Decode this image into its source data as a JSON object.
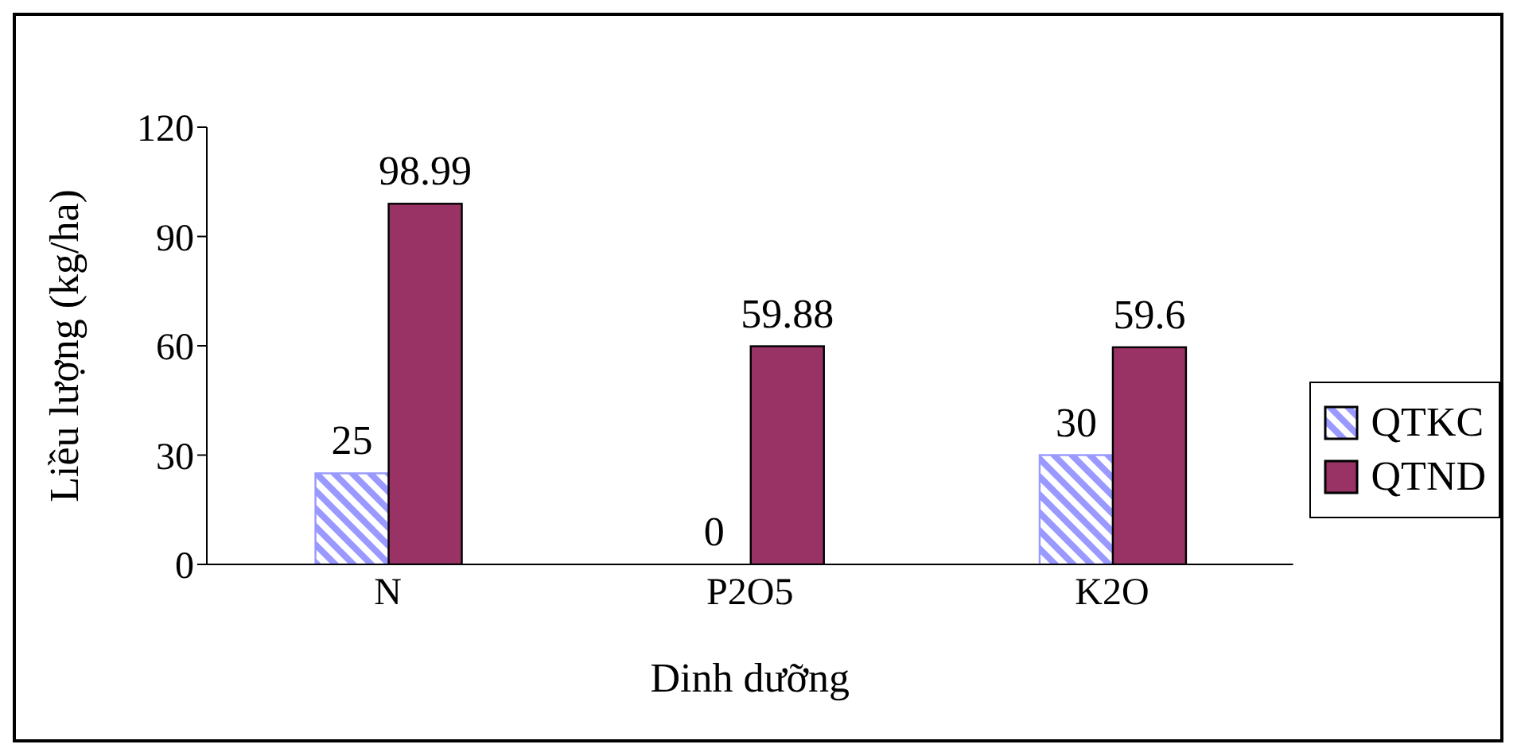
{
  "chart_data": {
    "type": "bar",
    "xlabel": "Dinh dưỡng",
    "ylabel": "Liều lượng (kg/ha)",
    "categories": [
      "N",
      "P2O5",
      "K2O"
    ],
    "series": [
      {
        "name": "QTKC",
        "color": "#9999ff",
        "values": [
          25,
          0,
          30
        ]
      },
      {
        "name": "QTND",
        "color": "#993366",
        "values": [
          98.99,
          59.88,
          59.6
        ]
      }
    ],
    "ylim": [
      0,
      120
    ],
    "yticks": [
      0,
      30,
      60,
      90,
      120
    ],
    "grid": false,
    "legend": "right",
    "data_labels": true
  }
}
